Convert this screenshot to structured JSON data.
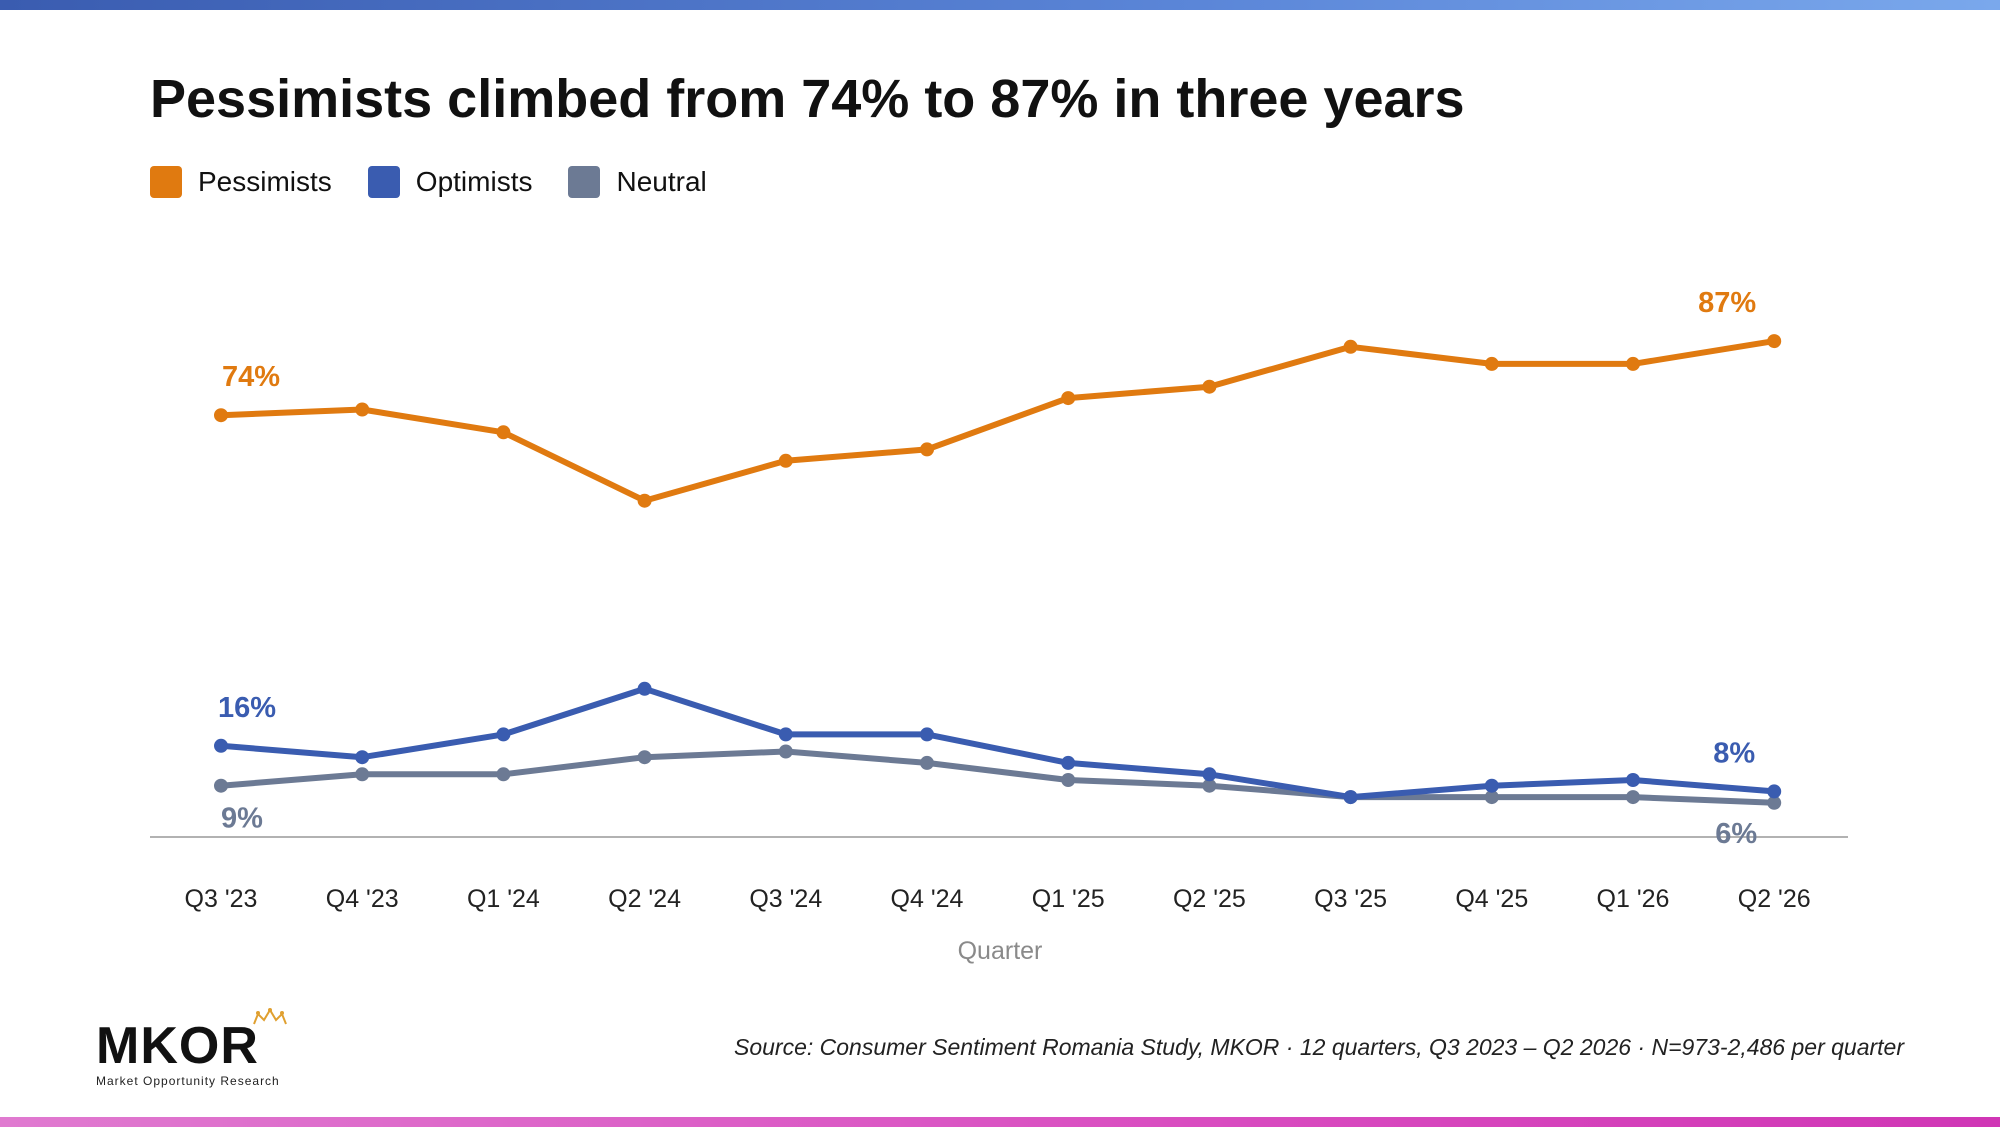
{
  "title": "Pessimists climbed from 74% to 87% in three years",
  "legend": [
    {
      "label": "Pessimists",
      "color": "#e07a10"
    },
    {
      "label": "Optimists",
      "color": "#3a5cb0"
    },
    {
      "label": "Neutral",
      "color": "#6c7a94"
    }
  ],
  "source": "Source: Consumer Sentiment Romania Study, MKOR · 12 quarters, Q3 2023 – Q2 2026 · N=973-2,486 per quarter",
  "logo": {
    "name": "MKOR",
    "tagline": "Market Opportunity Research"
  },
  "colors": {
    "pessimists": "#e07a10",
    "optimists": "#3a5cb0",
    "neutral": "#6c7a94",
    "axis": "#999999",
    "xlabel": "#8a8a8a"
  },
  "chart_data": {
    "type": "line",
    "title": "Pessimists climbed from 74% to 87% in three years",
    "xlabel": "Quarter",
    "ylabel": "",
    "categories": [
      "Q3 '23",
      "Q4 '23",
      "Q1 '24",
      "Q2 '24",
      "Q3 '24",
      "Q4 '24",
      "Q1 '25",
      "Q2 '25",
      "Q3 '25",
      "Q4 '25",
      "Q1 '26",
      "Q2 '26"
    ],
    "ylim": [
      0,
      100
    ],
    "grid": false,
    "legend_position": "top-left",
    "series": [
      {
        "name": "Pessimists",
        "values": [
          74,
          75,
          71,
          59,
          66,
          68,
          77,
          79,
          86,
          83,
          83,
          87
        ]
      },
      {
        "name": "Optimists",
        "values": [
          16,
          14,
          18,
          26,
          18,
          18,
          13,
          11,
          7,
          9,
          10,
          8
        ]
      },
      {
        "name": "Neutral",
        "values": [
          9,
          11,
          11,
          14,
          15,
          13,
          10,
          9,
          7,
          7,
          7,
          6
        ]
      }
    ],
    "annotations": [
      {
        "series": "Pessimists",
        "index": 0,
        "text": "74%"
      },
      {
        "series": "Pessimists",
        "index": 11,
        "text": "87%"
      },
      {
        "series": "Optimists",
        "index": 0,
        "text": "16%"
      },
      {
        "series": "Optimists",
        "index": 11,
        "text": "8%"
      },
      {
        "series": "Neutral",
        "index": 0,
        "text": "9%"
      },
      {
        "series": "Neutral",
        "index": 11,
        "text": "6%"
      }
    ]
  }
}
